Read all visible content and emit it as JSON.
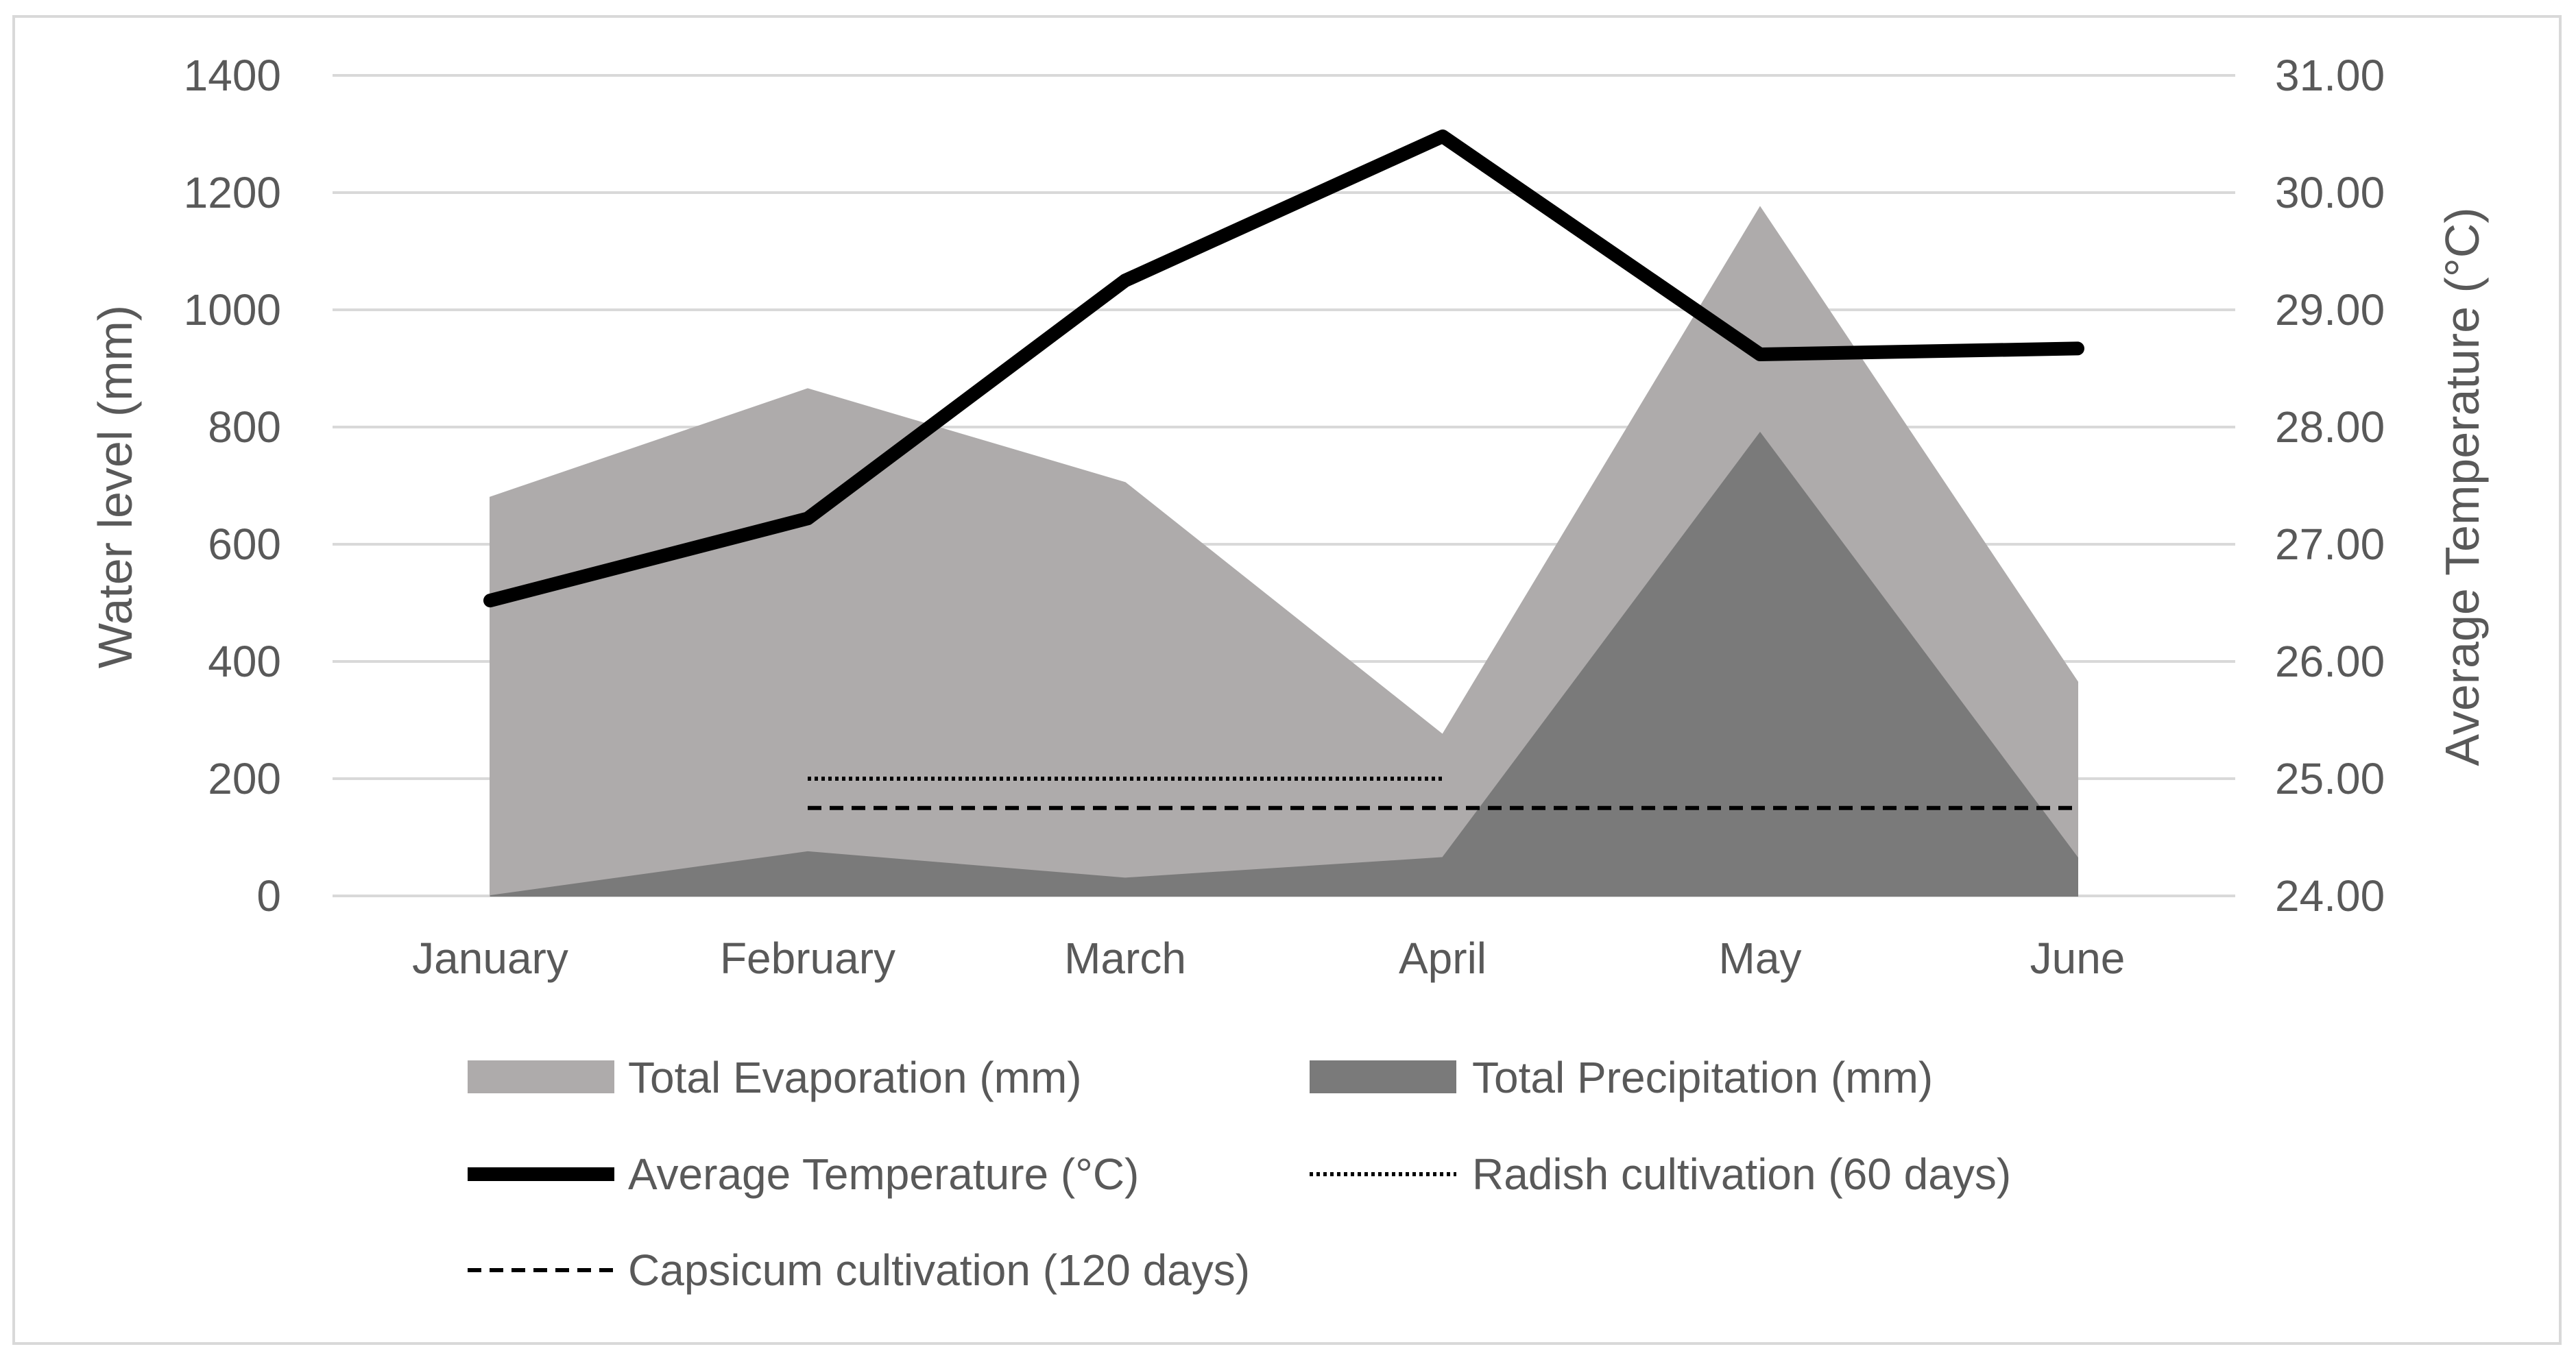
{
  "chart_data": {
    "type": "area",
    "title": "",
    "categories": [
      "January",
      "February",
      "March",
      "April",
      "May",
      "June"
    ],
    "ylabel": "Water level  (mm)",
    "y2label": "Average Temperature (°C)",
    "ylim": [
      0,
      1400
    ],
    "y2lim": [
      24.0,
      31.0
    ],
    "yticks": [
      "0",
      "200",
      "400",
      "600",
      "800",
      "1000",
      "1200",
      "1400"
    ],
    "y2ticks": [
      "24.00",
      "25.00",
      "26.00",
      "27.00",
      "28.00",
      "29.00",
      "30.00",
      "31.00"
    ],
    "grid": true,
    "legend_position": "bottom",
    "series": [
      {
        "name": "Total Evaporation (mm)",
        "kind": "area",
        "axis": "left",
        "color": "#aeabab",
        "values": [
          680,
          865,
          705,
          275,
          1175,
          365
        ]
      },
      {
        "name": "Total Precipitation (mm)",
        "kind": "area",
        "axis": "left",
        "color": "#7a7a7a",
        "values": [
          0,
          75,
          30,
          65,
          790,
          65
        ]
      },
      {
        "name": "Average Temperature (°C)",
        "kind": "line",
        "axis": "right",
        "color": "#000000",
        "style": "solid",
        "values": [
          26.52,
          27.22,
          29.25,
          30.48,
          28.62,
          28.67
        ]
      },
      {
        "name": "Radish cultivation (60 days)",
        "kind": "line",
        "axis": "left",
        "color": "#000000",
        "style": "dotted",
        "start_category": "February",
        "end_category": "April",
        "value": 200
      },
      {
        "name": "Capsicum cultivation (120 days)",
        "kind": "line",
        "axis": "left",
        "color": "#000000",
        "style": "dashed",
        "start_category": "February",
        "end_category": "June",
        "value": 150
      }
    ]
  }
}
